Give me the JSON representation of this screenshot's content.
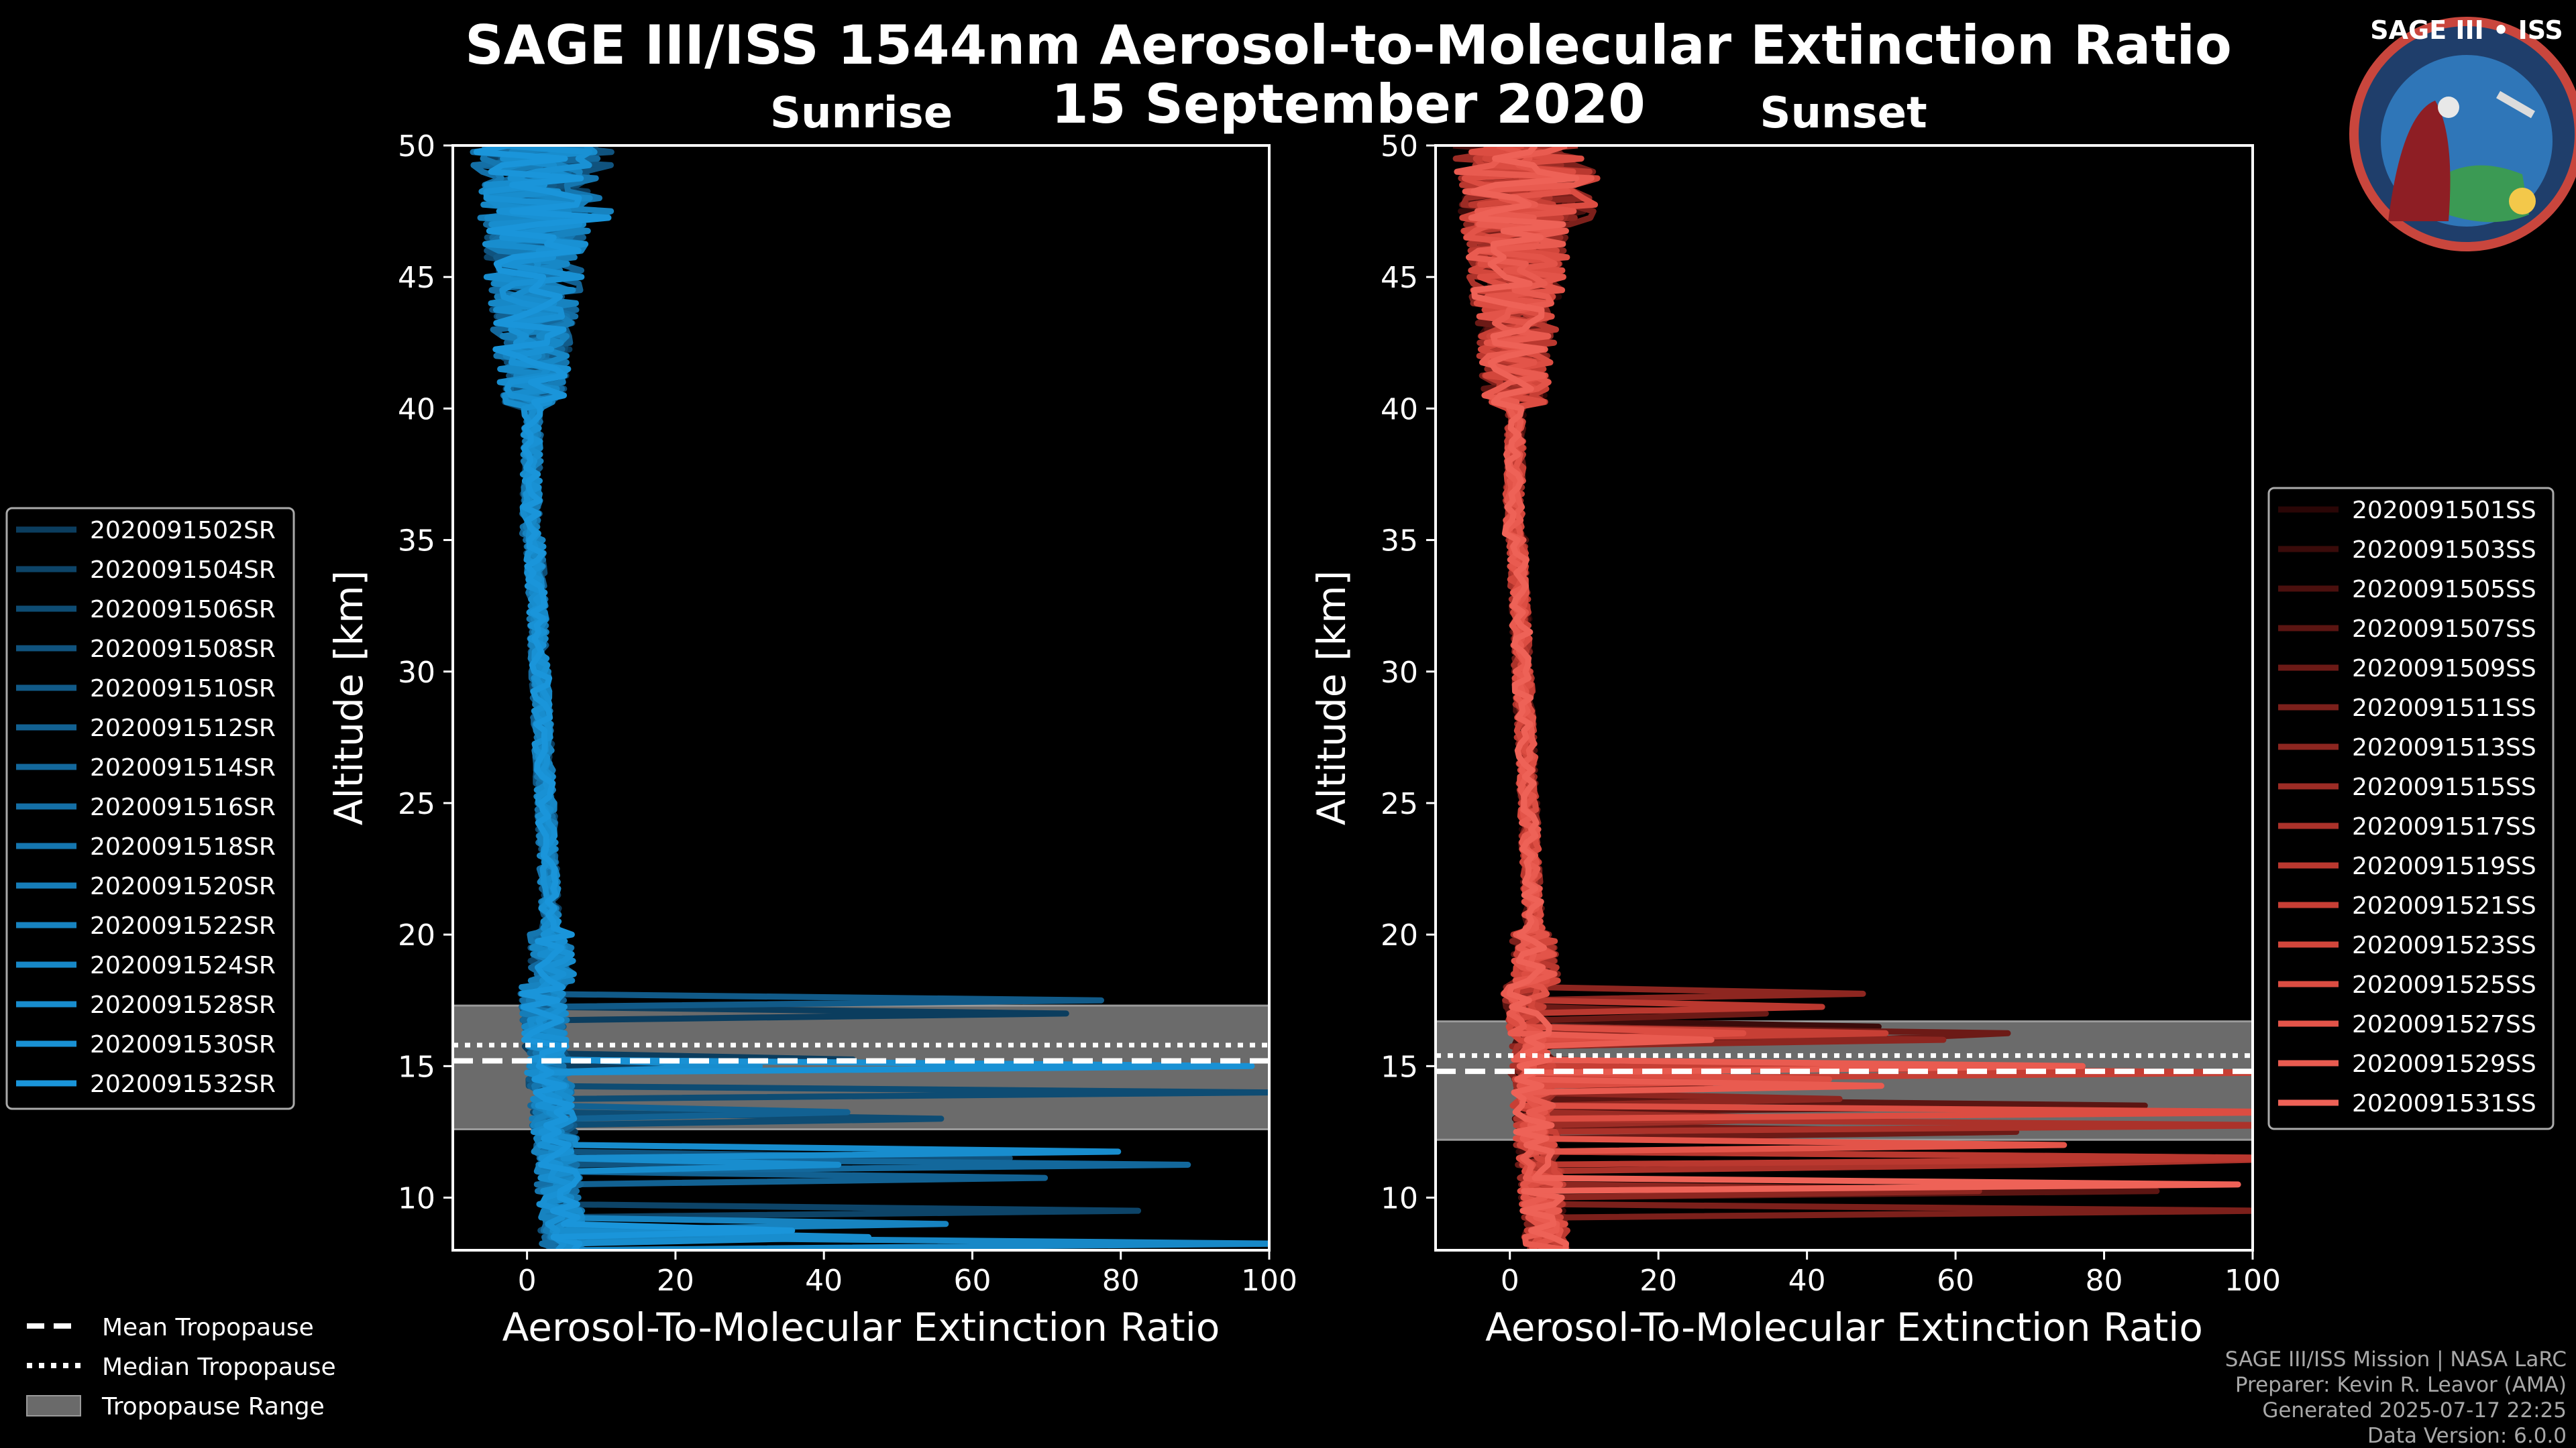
{
  "chart_data": {
    "type": "line",
    "title": "SAGE III/ISS 1544nm Aerosol-to-Molecular Extinction Ratio",
    "date": "15 September 2020",
    "panels": [
      {
        "subtitle": "Sunrise",
        "xlabel": "Aerosol-To-Molecular Extinction Ratio",
        "ylabel": "Altitude [km]",
        "xlim": [
          -10,
          100
        ],
        "ylim": [
          8,
          50
        ],
        "xticks": [
          0,
          20,
          40,
          60,
          80,
          100
        ],
        "yticks": [
          10,
          15,
          20,
          25,
          30,
          35,
          40,
          45,
          50
        ],
        "tropopause": {
          "mean": 15.2,
          "median": 15.8,
          "range": [
            12.6,
            17.3
          ]
        },
        "series": [
          {
            "name": "2020091502SR",
            "color": "#0b3d5e"
          },
          {
            "name": "2020091504SR",
            "color": "#0d4468"
          },
          {
            "name": "2020091506SR",
            "color": "#0e4c73"
          },
          {
            "name": "2020091508SR",
            "color": "#10537e"
          },
          {
            "name": "2020091510SR",
            "color": "#115a88"
          },
          {
            "name": "2020091512SR",
            "color": "#126192"
          },
          {
            "name": "2020091514SR",
            "color": "#13689c"
          },
          {
            "name": "2020091516SR",
            "color": "#146fa6"
          },
          {
            "name": "2020091518SR",
            "color": "#1576af"
          },
          {
            "name": "2020091520SR",
            "color": "#167db8"
          },
          {
            "name": "2020091522SR",
            "color": "#1783c0"
          },
          {
            "name": "2020091524SR",
            "color": "#1788c7"
          },
          {
            "name": "2020091528SR",
            "color": "#188dce"
          },
          {
            "name": "2020091530SR",
            "color": "#1991d4"
          },
          {
            "name": "2020091532SR",
            "color": "#1a95da"
          }
        ]
      },
      {
        "subtitle": "Sunset",
        "xlabel": "Aerosol-To-Molecular Extinction Ratio",
        "ylabel": "Altitude [km]",
        "xlim": [
          -10,
          100
        ],
        "ylim": [
          8,
          50
        ],
        "xticks": [
          0,
          20,
          40,
          60,
          80,
          100
        ],
        "yticks": [
          10,
          15,
          20,
          25,
          30,
          35,
          40,
          45,
          50
        ],
        "tropopause": {
          "mean": 14.8,
          "median": 15.4,
          "range": [
            12.2,
            16.7
          ]
        },
        "series": [
          {
            "name": "2020091501SS",
            "color": "#2a0606"
          },
          {
            "name": "2020091503SS",
            "color": "#3a0b0a"
          },
          {
            "name": "2020091505SS",
            "color": "#4b100e"
          },
          {
            "name": "2020091507SS",
            "color": "#5b1512"
          },
          {
            "name": "2020091509SS",
            "color": "#6c1a16"
          },
          {
            "name": "2020091511SS",
            "color": "#7c201b"
          },
          {
            "name": "2020091513SS",
            "color": "#8d2620"
          },
          {
            "name": "2020091515SS",
            "color": "#9c2c25"
          },
          {
            "name": "2020091517SS",
            "color": "#ab322a"
          },
          {
            "name": "2020091519SS",
            "color": "#ba382f"
          },
          {
            "name": "2020091521SS",
            "color": "#c73f35"
          },
          {
            "name": "2020091523SS",
            "color": "#d2463b"
          },
          {
            "name": "2020091525SS",
            "color": "#dc4d42"
          },
          {
            "name": "2020091527SS",
            "color": "#e35449"
          },
          {
            "name": "2020091529SS",
            "color": "#e95b50"
          },
          {
            "name": "2020091531SS",
            "color": "#ee6257"
          }
        ]
      }
    ],
    "legend_common": [
      "Mean Tropopause",
      "Median Tropopause",
      "Tropopause Range"
    ]
  },
  "logo": {
    "title": "SAGE III • ISS"
  },
  "footer": [
    "SAGE III/ISS Mission | NASA LaRC",
    "Preparer: Kevin R. Leavor (AMA)",
    "Generated 2025-07-17 22:25",
    "Data Version: 6.0.0"
  ]
}
